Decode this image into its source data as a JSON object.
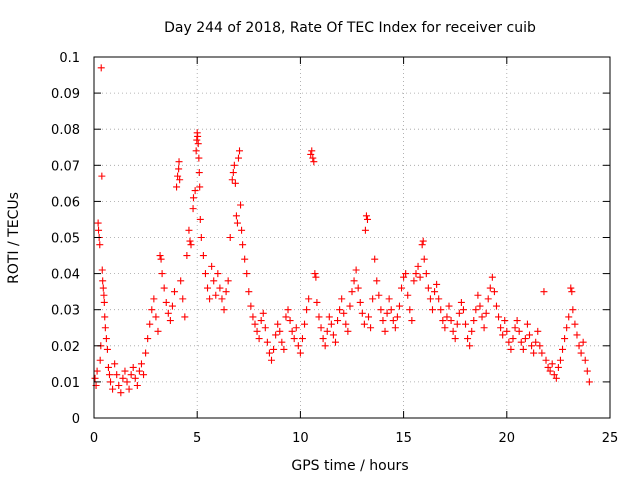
{
  "chart_data": {
    "type": "scatter",
    "title": "Day 244 of 2018, Rate Of TEC Index for receiver cuib",
    "xlabel": "GPS time / hours",
    "ylabel": "ROTI / TECUs",
    "xlim": [
      0,
      25
    ],
    "ylim": [
      0,
      0.1
    ],
    "x_ticks": [
      0,
      5,
      10,
      15,
      20,
      25
    ],
    "x_tick_labels": [
      "0",
      "5",
      "10",
      "15",
      "20",
      "25"
    ],
    "y_ticks": [
      0,
      0.01,
      0.02,
      0.03,
      0.04,
      0.05,
      0.06,
      0.07,
      0.08,
      0.09,
      0.1
    ],
    "y_tick_labels": [
      "0",
      "0.01",
      "0.02",
      "0.03",
      "0.04",
      "0.05",
      "0.06",
      "0.07",
      "0.08",
      "0.09",
      "0.1"
    ],
    "grid": true,
    "marker": "+",
    "color": "#ff0000",
    "series": [
      {
        "name": "ROTI",
        "points": [
          [
            0.05,
            0.011
          ],
          [
            0.1,
            0.009
          ],
          [
            0.15,
            0.013
          ],
          [
            0.2,
            0.054
          ],
          [
            0.22,
            0.052
          ],
          [
            0.25,
            0.05
          ],
          [
            0.28,
            0.048
          ],
          [
            0.3,
            0.016
          ],
          [
            0.33,
            0.02
          ],
          [
            0.35,
            0.097
          ],
          [
            0.38,
            0.067
          ],
          [
            0.4,
            0.041
          ],
          [
            0.42,
            0.038
          ],
          [
            0.45,
            0.036
          ],
          [
            0.48,
            0.034
          ],
          [
            0.5,
            0.032
          ],
          [
            0.52,
            0.028
          ],
          [
            0.55,
            0.025
          ],
          [
            0.6,
            0.022
          ],
          [
            0.65,
            0.019
          ],
          [
            0.7,
            0.014
          ],
          [
            0.75,
            0.012
          ],
          [
            0.8,
            0.01
          ],
          [
            0.9,
            0.008
          ],
          [
            1.0,
            0.015
          ],
          [
            1.1,
            0.012
          ],
          [
            1.2,
            0.009
          ],
          [
            1.3,
            0.007
          ],
          [
            1.4,
            0.011
          ],
          [
            1.5,
            0.013
          ],
          [
            1.6,
            0.01
          ],
          [
            1.7,
            0.008
          ],
          [
            1.8,
            0.012
          ],
          [
            1.9,
            0.014
          ],
          [
            2.0,
            0.011
          ],
          [
            2.1,
            0.009
          ],
          [
            2.2,
            0.013
          ],
          [
            2.3,
            0.015
          ],
          [
            2.4,
            0.012
          ],
          [
            2.5,
            0.018
          ],
          [
            2.6,
            0.022
          ],
          [
            2.7,
            0.026
          ],
          [
            2.8,
            0.03
          ],
          [
            2.9,
            0.033
          ],
          [
            3.0,
            0.028
          ],
          [
            3.1,
            0.024
          ],
          [
            3.2,
            0.045
          ],
          [
            3.25,
            0.044
          ],
          [
            3.3,
            0.04
          ],
          [
            3.4,
            0.036
          ],
          [
            3.5,
            0.032
          ],
          [
            3.6,
            0.029
          ],
          [
            3.7,
            0.027
          ],
          [
            3.8,
            0.031
          ],
          [
            3.9,
            0.035
          ],
          [
            4.0,
            0.064
          ],
          [
            4.05,
            0.067
          ],
          [
            4.1,
            0.069
          ],
          [
            4.12,
            0.071
          ],
          [
            4.15,
            0.066
          ],
          [
            4.2,
            0.038
          ],
          [
            4.3,
            0.033
          ],
          [
            4.4,
            0.028
          ],
          [
            4.5,
            0.045
          ],
          [
            4.6,
            0.052
          ],
          [
            4.65,
            0.049
          ],
          [
            4.7,
            0.048
          ],
          [
            4.8,
            0.058
          ],
          [
            4.82,
            0.061
          ],
          [
            4.9,
            0.063
          ],
          [
            4.95,
            0.074
          ],
          [
            4.98,
            0.077
          ],
          [
            5.0,
            0.079
          ],
          [
            5.02,
            0.078
          ],
          [
            5.05,
            0.076
          ],
          [
            5.08,
            0.072
          ],
          [
            5.1,
            0.068
          ],
          [
            5.12,
            0.064
          ],
          [
            5.15,
            0.055
          ],
          [
            5.2,
            0.05
          ],
          [
            5.3,
            0.045
          ],
          [
            5.4,
            0.04
          ],
          [
            5.5,
            0.036
          ],
          [
            5.6,
            0.033
          ],
          [
            5.7,
            0.042
          ],
          [
            5.8,
            0.038
          ],
          [
            5.9,
            0.034
          ],
          [
            6.0,
            0.04
          ],
          [
            6.1,
            0.036
          ],
          [
            6.2,
            0.033
          ],
          [
            6.3,
            0.03
          ],
          [
            6.4,
            0.035
          ],
          [
            6.5,
            0.038
          ],
          [
            6.6,
            0.05
          ],
          [
            6.7,
            0.066
          ],
          [
            6.75,
            0.068
          ],
          [
            6.8,
            0.07
          ],
          [
            6.85,
            0.065
          ],
          [
            6.9,
            0.056
          ],
          [
            6.95,
            0.054
          ],
          [
            7.0,
            0.072
          ],
          [
            7.05,
            0.074
          ],
          [
            7.1,
            0.059
          ],
          [
            7.15,
            0.052
          ],
          [
            7.2,
            0.048
          ],
          [
            7.3,
            0.044
          ],
          [
            7.4,
            0.04
          ],
          [
            7.5,
            0.035
          ],
          [
            7.6,
            0.031
          ],
          [
            7.7,
            0.028
          ],
          [
            7.8,
            0.026
          ],
          [
            7.9,
            0.024
          ],
          [
            8.0,
            0.022
          ],
          [
            8.1,
            0.027
          ],
          [
            8.2,
            0.029
          ],
          [
            8.3,
            0.025
          ],
          [
            8.4,
            0.021
          ],
          [
            8.5,
            0.018
          ],
          [
            8.6,
            0.016
          ],
          [
            8.7,
            0.019
          ],
          [
            8.8,
            0.023
          ],
          [
            8.9,
            0.026
          ],
          [
            9.0,
            0.024
          ],
          [
            9.1,
            0.021
          ],
          [
            9.2,
            0.019
          ],
          [
            9.3,
            0.028
          ],
          [
            9.4,
            0.03
          ],
          [
            9.5,
            0.027
          ],
          [
            9.6,
            0.024
          ],
          [
            9.7,
            0.022
          ],
          [
            9.8,
            0.025
          ],
          [
            9.9,
            0.02
          ],
          [
            10.0,
            0.018
          ],
          [
            10.1,
            0.022
          ],
          [
            10.2,
            0.026
          ],
          [
            10.3,
            0.03
          ],
          [
            10.4,
            0.033
          ],
          [
            10.5,
            0.073
          ],
          [
            10.55,
            0.074
          ],
          [
            10.6,
            0.072
          ],
          [
            10.65,
            0.071
          ],
          [
            10.7,
            0.04
          ],
          [
            10.75,
            0.039
          ],
          [
            10.8,
            0.032
          ],
          [
            10.9,
            0.028
          ],
          [
            11.0,
            0.025
          ],
          [
            11.1,
            0.022
          ],
          [
            11.2,
            0.02
          ],
          [
            11.3,
            0.024
          ],
          [
            11.4,
            0.028
          ],
          [
            11.5,
            0.026
          ],
          [
            11.6,
            0.023
          ],
          [
            11.7,
            0.021
          ],
          [
            11.8,
            0.027
          ],
          [
            11.9,
            0.03
          ],
          [
            12.0,
            0.033
          ],
          [
            12.1,
            0.029
          ],
          [
            12.2,
            0.026
          ],
          [
            12.3,
            0.024
          ],
          [
            12.4,
            0.031
          ],
          [
            12.5,
            0.035
          ],
          [
            12.6,
            0.038
          ],
          [
            12.7,
            0.041
          ],
          [
            12.8,
            0.036
          ],
          [
            12.9,
            0.032
          ],
          [
            13.0,
            0.029
          ],
          [
            13.1,
            0.026
          ],
          [
            13.15,
            0.052
          ],
          [
            13.2,
            0.056
          ],
          [
            13.25,
            0.055
          ],
          [
            13.3,
            0.028
          ],
          [
            13.4,
            0.025
          ],
          [
            13.5,
            0.033
          ],
          [
            13.6,
            0.044
          ],
          [
            13.7,
            0.038
          ],
          [
            13.8,
            0.034
          ],
          [
            13.9,
            0.03
          ],
          [
            14.0,
            0.027
          ],
          [
            14.1,
            0.024
          ],
          [
            14.2,
            0.029
          ],
          [
            14.3,
            0.033
          ],
          [
            14.4,
            0.03
          ],
          [
            14.5,
            0.027
          ],
          [
            14.6,
            0.025
          ],
          [
            14.7,
            0.028
          ],
          [
            14.8,
            0.031
          ],
          [
            14.9,
            0.036
          ],
          [
            15.0,
            0.039
          ],
          [
            15.1,
            0.04
          ],
          [
            15.2,
            0.034
          ],
          [
            15.3,
            0.03
          ],
          [
            15.4,
            0.027
          ],
          [
            15.5,
            0.038
          ],
          [
            15.6,
            0.04
          ],
          [
            15.7,
            0.042
          ],
          [
            15.8,
            0.039
          ],
          [
            15.9,
            0.048
          ],
          [
            15.95,
            0.049
          ],
          [
            16.0,
            0.044
          ],
          [
            16.1,
            0.04
          ],
          [
            16.2,
            0.036
          ],
          [
            16.3,
            0.033
          ],
          [
            16.4,
            0.03
          ],
          [
            16.5,
            0.035
          ],
          [
            16.6,
            0.037
          ],
          [
            16.7,
            0.033
          ],
          [
            16.8,
            0.03
          ],
          [
            16.9,
            0.027
          ],
          [
            17.0,
            0.025
          ],
          [
            17.1,
            0.028
          ],
          [
            17.2,
            0.031
          ],
          [
            17.3,
            0.027
          ],
          [
            17.4,
            0.024
          ],
          [
            17.5,
            0.022
          ],
          [
            17.6,
            0.026
          ],
          [
            17.7,
            0.029
          ],
          [
            17.8,
            0.032
          ],
          [
            17.9,
            0.03
          ],
          [
            18.0,
            0.026
          ],
          [
            18.1,
            0.022
          ],
          [
            18.2,
            0.02
          ],
          [
            18.3,
            0.024
          ],
          [
            18.4,
            0.027
          ],
          [
            18.5,
            0.03
          ],
          [
            18.6,
            0.034
          ],
          [
            18.7,
            0.031
          ],
          [
            18.8,
            0.028
          ],
          [
            18.9,
            0.025
          ],
          [
            19.0,
            0.029
          ],
          [
            19.1,
            0.033
          ],
          [
            19.2,
            0.036
          ],
          [
            19.3,
            0.039
          ],
          [
            19.4,
            0.035
          ],
          [
            19.5,
            0.031
          ],
          [
            19.6,
            0.028
          ],
          [
            19.7,
            0.025
          ],
          [
            19.8,
            0.023
          ],
          [
            19.9,
            0.027
          ],
          [
            20.0,
            0.024
          ],
          [
            20.1,
            0.021
          ],
          [
            20.2,
            0.019
          ],
          [
            20.3,
            0.022
          ],
          [
            20.4,
            0.025
          ],
          [
            20.5,
            0.027
          ],
          [
            20.6,
            0.024
          ],
          [
            20.7,
            0.021
          ],
          [
            20.8,
            0.019
          ],
          [
            20.9,
            0.022
          ],
          [
            21.0,
            0.026
          ],
          [
            21.1,
            0.023
          ],
          [
            21.2,
            0.02
          ],
          [
            21.3,
            0.018
          ],
          [
            21.4,
            0.021
          ],
          [
            21.5,
            0.024
          ],
          [
            21.6,
            0.02
          ],
          [
            21.7,
            0.018
          ],
          [
            21.8,
            0.035
          ],
          [
            21.9,
            0.016
          ],
          [
            22.0,
            0.014
          ],
          [
            22.1,
            0.013
          ],
          [
            22.2,
            0.015
          ],
          [
            22.3,
            0.012
          ],
          [
            22.4,
            0.011
          ],
          [
            22.5,
            0.014
          ],
          [
            22.6,
            0.016
          ],
          [
            22.7,
            0.019
          ],
          [
            22.8,
            0.022
          ],
          [
            22.9,
            0.025
          ],
          [
            23.0,
            0.028
          ],
          [
            23.1,
            0.036
          ],
          [
            23.15,
            0.035
          ],
          [
            23.2,
            0.03
          ],
          [
            23.3,
            0.026
          ],
          [
            23.4,
            0.023
          ],
          [
            23.5,
            0.02
          ],
          [
            23.6,
            0.018
          ],
          [
            23.7,
            0.021
          ],
          [
            23.8,
            0.016
          ],
          [
            23.9,
            0.013
          ],
          [
            24.0,
            0.01
          ]
        ]
      }
    ]
  }
}
